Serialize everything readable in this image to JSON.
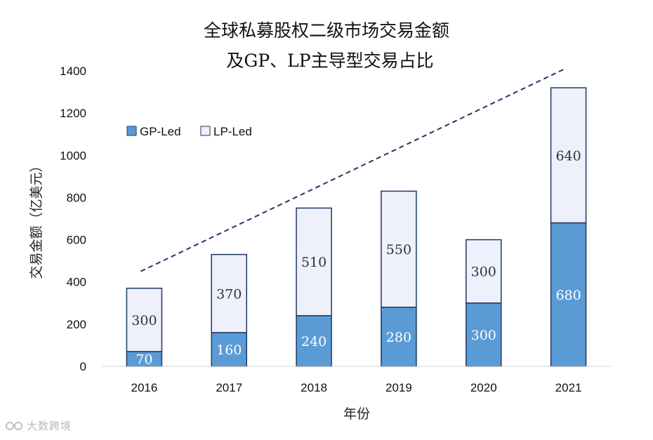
{
  "chart_data": {
    "type": "bar",
    "stacked": true,
    "title": "全球私募股权二级市场交易金额",
    "subtitle": "及GP、LP主导型交易占比",
    "xlabel": "年份",
    "ylabel": "交易金额（亿美元）",
    "categories": [
      "2016",
      "2017",
      "2018",
      "2019",
      "2020",
      "2021"
    ],
    "series": [
      {
        "name": "GP-Led",
        "values": [
          70,
          160,
          240,
          280,
          300,
          680
        ],
        "color": "#5b9bd5"
      },
      {
        "name": "LP-Led",
        "values": [
          300,
          370,
          510,
          550,
          300,
          640
        ],
        "color": "#eef0fb"
      }
    ],
    "ylim": [
      0,
      1400
    ],
    "yticks": [
      0,
      200,
      400,
      600,
      800,
      1000,
      1200,
      1400
    ],
    "grid": false,
    "legend_position": "top-left",
    "trend_line": {
      "style": "dashed",
      "color": "#1f3864",
      "from": {
        "x": "2016",
        "y": 450
      },
      "to": {
        "x": "2021",
        "y": 1410
      }
    },
    "bar_edge_color": "#1f3864"
  },
  "watermark": {
    "text": "大数跨境",
    "icon": "brand-logo-icon"
  }
}
